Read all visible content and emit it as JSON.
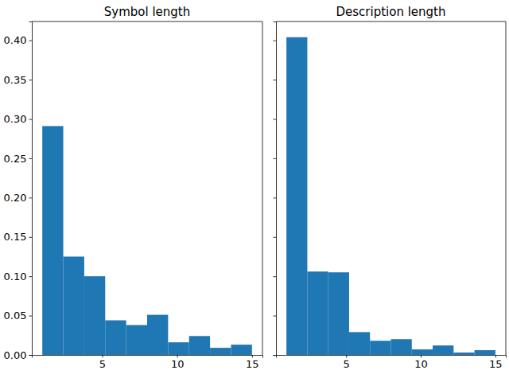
{
  "chart_data": [
    {
      "type": "histogram",
      "title": "Symbol length",
      "bins": [
        1,
        2.4,
        3.8,
        5.2,
        6.6,
        8,
        9.4,
        10.8,
        12.2,
        13.6,
        15
      ],
      "values": [
        0.291,
        0.125,
        0.1,
        0.044,
        0.038,
        0.051,
        0.016,
        0.024,
        0.009,
        0.013
      ],
      "color": "#1f77b4",
      "xlim": [
        0.3,
        15.7
      ],
      "xticks": [
        5,
        10,
        15
      ],
      "ylim": [
        0,
        0.424
      ],
      "yticks": [
        {
          "value": 0,
          "label": "0.00"
        },
        {
          "value": 0.05,
          "label": "0.05"
        },
        {
          "value": 0.1,
          "label": "0.10"
        },
        {
          "value": 0.15,
          "label": "0.15"
        },
        {
          "value": 0.2,
          "label": "0.20"
        },
        {
          "value": 0.25,
          "label": "0.25"
        },
        {
          "value": 0.3,
          "label": "0.30"
        },
        {
          "value": 0.35,
          "label": "0.35"
        },
        {
          "value": 0.4,
          "label": "0.40"
        }
      ]
    },
    {
      "type": "histogram",
      "title": "Description length",
      "bins": [
        1,
        2.4,
        3.8,
        5.2,
        6.6,
        8,
        9.4,
        10.8,
        12.2,
        13.6,
        15
      ],
      "values": [
        0.404,
        0.106,
        0.105,
        0.029,
        0.018,
        0.02,
        0.007,
        0.012,
        0.003,
        0.006
      ],
      "color": "#1f77b4",
      "xlim": [
        0.3,
        15.7
      ],
      "xticks": [
        5,
        10,
        15
      ],
      "ylim": [
        0,
        0.424
      ],
      "yticks": [
        {
          "value": 0,
          "label": "0.00"
        },
        {
          "value": 0.05,
          "label": "0.05"
        },
        {
          "value": 0.1,
          "label": "0.10"
        },
        {
          "value": 0.15,
          "label": "0.15"
        },
        {
          "value": 0.2,
          "label": "0.20"
        },
        {
          "value": 0.25,
          "label": "0.25"
        },
        {
          "value": 0.3,
          "label": "0.30"
        },
        {
          "value": 0.35,
          "label": "0.35"
        },
        {
          "value": 0.4,
          "label": "0.40"
        }
      ],
      "tick_labels": "x"
    }
  ]
}
